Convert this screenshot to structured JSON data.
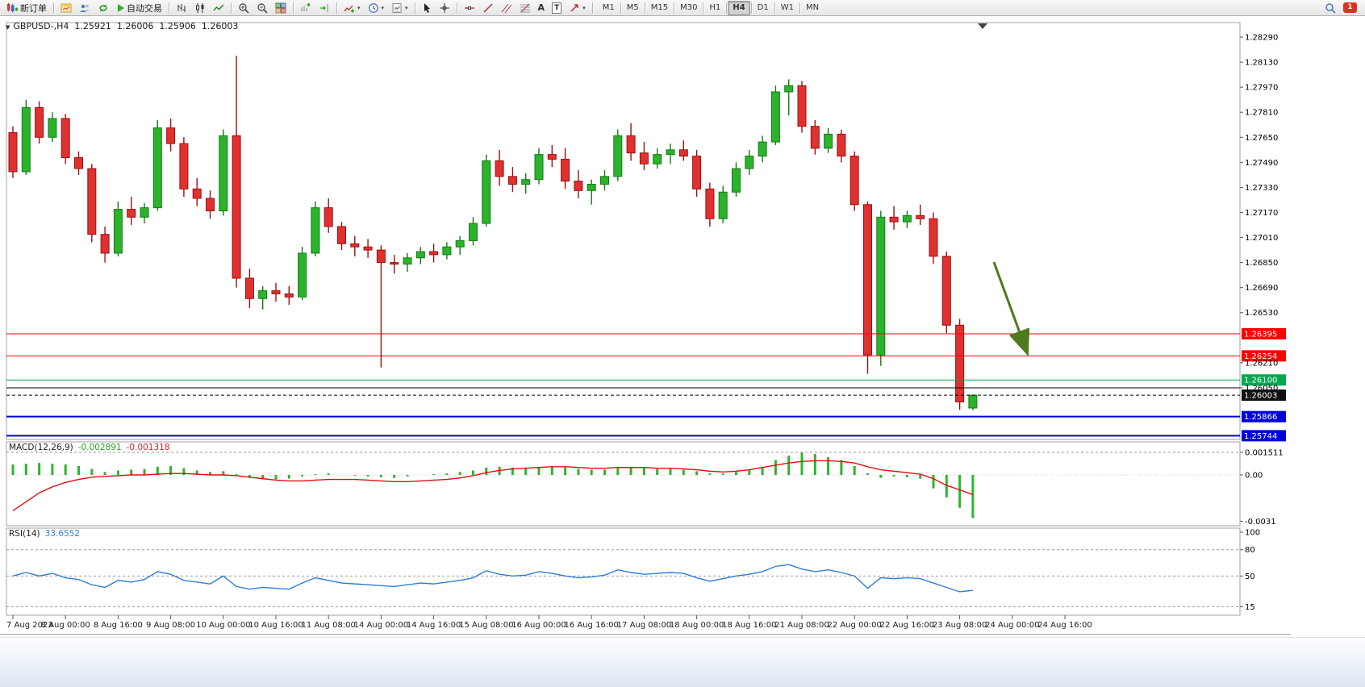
{
  "icon_glyphs": {
    "down_triangle": "▼",
    "caret": "▾",
    "text_tool": "A",
    "label_tool": "T"
  },
  "toolbar": {
    "new_order_label": "新订单",
    "autotrading_label": "自动交易",
    "timeframes": [
      "M1",
      "M5",
      "M15",
      "M30",
      "H1",
      "H4",
      "D1",
      "W1",
      "MN"
    ],
    "active_timeframe": "H4",
    "notification_badge": "1"
  },
  "chart": {
    "title": "GBPUSD-,H4",
    "ohlc": {
      "open": "1.25921",
      "high": "1.26006",
      "low": "1.25906",
      "close": "1.26003"
    },
    "macd_label": {
      "name": "MACD(12,26,9)",
      "main": "-0.002891",
      "signal": "-0.001318"
    },
    "rsi_label": {
      "name": "RSI(14)",
      "value": "33.6552"
    }
  },
  "chart_data": {
    "type": "candlestick",
    "symbol": "GBPUSD-",
    "timeframe": "H4",
    "title": "GBPUSD-,H4 1.25921 1.26006 1.25906 1.26003",
    "price_axis_ticks": [
      "1.28290",
      "1.28130",
      "1.27970",
      "1.27810",
      "1.27650",
      "1.27490",
      "1.27330",
      "1.27170",
      "1.27010",
      "1.26850",
      "1.26690",
      "1.26530",
      "1.26210",
      "1.26050"
    ],
    "time_labels": [
      "7 Aug 2023",
      "8 Aug 00:00",
      "8 Aug 16:00",
      "9 Aug 08:00",
      "10 Aug 00:00",
      "10 Aug 16:00",
      "11 Aug 08:00",
      "14 Aug 00:00",
      "14 Aug 16:00",
      "15 Aug 08:00",
      "16 Aug 00:00",
      "16 Aug 16:00",
      "17 Aug 08:00",
      "18 Aug 00:00",
      "18 Aug 16:00",
      "21 Aug 08:00",
      "22 Aug 00:00",
      "22 Aug 16:00",
      "23 Aug 08:00",
      "24 Aug 00:00",
      "24 Aug 16:00"
    ],
    "candles": [
      [
        1.2768,
        1.2772,
        1.2739,
        1.2743
      ],
      [
        1.2743,
        1.2789,
        1.2741,
        1.2784
      ],
      [
        1.2784,
        1.2788,
        1.2761,
        1.2765
      ],
      [
        1.2765,
        1.2781,
        1.2762,
        1.2777
      ],
      [
        1.2777,
        1.278,
        1.2748,
        1.2752
      ],
      [
        1.2752,
        1.2756,
        1.2741,
        1.2745
      ],
      [
        1.2745,
        1.2748,
        1.2698,
        1.2703
      ],
      [
        1.2703,
        1.2708,
        1.2685,
        1.2691
      ],
      [
        1.2691,
        1.2724,
        1.2689,
        1.2719
      ],
      [
        1.2719,
        1.2727,
        1.2709,
        1.2714
      ],
      [
        1.2714,
        1.2723,
        1.271,
        1.272
      ],
      [
        1.272,
        1.2776,
        1.2718,
        1.2771
      ],
      [
        1.2771,
        1.2777,
        1.2756,
        1.2761
      ],
      [
        1.2761,
        1.2765,
        1.2727,
        1.2732
      ],
      [
        1.2732,
        1.2739,
        1.2721,
        1.2726
      ],
      [
        1.2726,
        1.2731,
        1.2713,
        1.2718
      ],
      [
        1.2718,
        1.277,
        1.2715,
        1.2766
      ],
      [
        1.2766,
        1.2817,
        1.2669,
        1.2675
      ],
      [
        1.2675,
        1.2681,
        1.2656,
        1.2662
      ],
      [
        1.2662,
        1.267,
        1.2655,
        1.2667
      ],
      [
        1.2667,
        1.2672,
        1.266,
        1.2665
      ],
      [
        1.2665,
        1.267,
        1.2658,
        1.2663
      ],
      [
        1.2663,
        1.2695,
        1.2661,
        1.2691
      ],
      [
        1.2691,
        1.2724,
        1.2689,
        1.272
      ],
      [
        1.272,
        1.2726,
        1.2704,
        1.2708
      ],
      [
        1.2708,
        1.2711,
        1.2693,
        1.2697
      ],
      [
        1.2697,
        1.2702,
        1.2689,
        1.2695
      ],
      [
        1.2695,
        1.27,
        1.2688,
        1.2693
      ],
      [
        1.2693,
        1.2696,
        1.2618,
        1.2685
      ],
      [
        1.2685,
        1.269,
        1.2678,
        1.2684
      ],
      [
        1.2684,
        1.2691,
        1.2679,
        1.2688
      ],
      [
        1.2688,
        1.2695,
        1.2684,
        1.2692
      ],
      [
        1.2692,
        1.2697,
        1.2685,
        1.269
      ],
      [
        1.269,
        1.2698,
        1.2687,
        1.2695
      ],
      [
        1.2695,
        1.2702,
        1.269,
        1.2699
      ],
      [
        1.2699,
        1.2714,
        1.2696,
        1.271
      ],
      [
        1.271,
        1.2754,
        1.2708,
        1.275
      ],
      [
        1.275,
        1.2757,
        1.2734,
        1.274
      ],
      [
        1.274,
        1.2746,
        1.273,
        1.2735
      ],
      [
        1.2735,
        1.2742,
        1.2729,
        1.2738
      ],
      [
        1.2738,
        1.2758,
        1.2735,
        1.2754
      ],
      [
        1.2754,
        1.276,
        1.2746,
        1.2751
      ],
      [
        1.2751,
        1.2758,
        1.2732,
        1.2737
      ],
      [
        1.2737,
        1.2744,
        1.2726,
        1.2731
      ],
      [
        1.2731,
        1.2738,
        1.2722,
        1.2735
      ],
      [
        1.2735,
        1.2744,
        1.2731,
        1.274
      ],
      [
        1.274,
        1.277,
        1.2737,
        1.2766
      ],
      [
        1.2766,
        1.2774,
        1.275,
        1.2755
      ],
      [
        1.2755,
        1.2762,
        1.2744,
        1.2748
      ],
      [
        1.2748,
        1.2758,
        1.2745,
        1.2754
      ],
      [
        1.2754,
        1.2761,
        1.2748,
        1.2757
      ],
      [
        1.2757,
        1.2763,
        1.275,
        1.2753
      ],
      [
        1.2753,
        1.2757,
        1.2727,
        1.2732
      ],
      [
        1.2732,
        1.2736,
        1.2708,
        1.2713
      ],
      [
        1.2713,
        1.2734,
        1.271,
        1.273
      ],
      [
        1.273,
        1.2749,
        1.2727,
        1.2745
      ],
      [
        1.2745,
        1.2757,
        1.2741,
        1.2753
      ],
      [
        1.2753,
        1.2766,
        1.2749,
        1.2762
      ],
      [
        1.2762,
        1.2798,
        1.276,
        1.2794
      ],
      [
        1.2794,
        1.2802,
        1.2779,
        1.2798
      ],
      [
        1.2798,
        1.2801,
        1.2768,
        1.2772
      ],
      [
        1.2772,
        1.2776,
        1.2754,
        1.2758
      ],
      [
        1.2758,
        1.2771,
        1.2755,
        1.2767
      ],
      [
        1.2767,
        1.277,
        1.2749,
        1.2753
      ],
      [
        1.2753,
        1.2756,
        1.2718,
        1.2722
      ],
      [
        1.2722,
        1.2724,
        1.2614,
        1.2626
      ],
      [
        1.2626,
        1.2718,
        1.2619,
        1.2714
      ],
      [
        1.2714,
        1.2721,
        1.2706,
        1.2711
      ],
      [
        1.2711,
        1.2718,
        1.2707,
        1.2715
      ],
      [
        1.2715,
        1.2722,
        1.2709,
        1.2713
      ],
      [
        1.2713,
        1.2717,
        1.2684,
        1.2689
      ],
      [
        1.2689,
        1.2692,
        1.264,
        1.2645
      ],
      [
        1.2645,
        1.2649,
        1.2591,
        1.2596
      ],
      [
        1.25921,
        1.26006,
        1.25906,
        1.26003
      ]
    ],
    "hlines": [
      {
        "price": 1.26395,
        "color": "#ff0000",
        "label": "1.26395",
        "width": 1
      },
      {
        "price": 1.26254,
        "color": "#ff0000",
        "label": "1.26254",
        "width": 1
      },
      {
        "price": 1.261,
        "color": "#00a650",
        "label": "1.26100",
        "width": 1
      },
      {
        "price": 1.2605,
        "color": "#000000",
        "label": null,
        "width": 1
      },
      {
        "price": 1.25866,
        "color": "#0000d8",
        "label": "1.25866",
        "width": 2
      },
      {
        "price": 1.25744,
        "color": "#0000d8",
        "label": "1.25744",
        "width": 2
      }
    ],
    "current_price_line": {
      "price": 1.26003,
      "label": "1.26003"
    },
    "arrow_annotation": {
      "from_bar": 74.6,
      "from_price": 1.26853,
      "to_bar": 77.1,
      "to_price": 1.2628
    },
    "macd": {
      "axis_labels": [
        "0.001511",
        "0.00",
        "-0.0031"
      ],
      "levels": [
        0.001511
      ],
      "hist": [
        0.0007,
        0.00075,
        0.0008,
        0.00075,
        0.0007,
        0.0006,
        0.0004,
        0.0002,
        0.0003,
        0.00035,
        0.0004,
        0.00055,
        0.0006,
        0.00045,
        0.0003,
        0.0002,
        0.00025,
        5e-05,
        -0.0002,
        -0.0003,
        -0.0003,
        -0.00025,
        -0.0001,
        5e-05,
        0.0001,
        0.0,
        -5e-05,
        -0.0001,
        -0.00015,
        -0.0002,
        -0.0001,
        0.0,
        5e-05,
        0.0001,
        0.0002,
        0.0003,
        0.0005,
        0.00055,
        0.0005,
        0.00045,
        0.0005,
        0.00055,
        0.0005,
        0.0004,
        0.00035,
        0.00035,
        0.00045,
        0.0005,
        0.00045,
        0.0004,
        0.0004,
        0.00035,
        0.00025,
        0.0001,
        0.0001,
        0.0002,
        0.00035,
        0.0005,
        0.001,
        0.0013,
        0.0015,
        0.0014,
        0.0012,
        0.001,
        0.0006,
        0.0001,
        -0.0002,
        -0.0001,
        -0.00015,
        -0.00025,
        -0.0009,
        -0.0015,
        -0.0022,
        -0.002891
      ],
      "signal": [
        -0.0024,
        -0.0018,
        -0.0012,
        -0.0008,
        -0.0005,
        -0.0003,
        -0.00015,
        -0.0001,
        -5e-05,
        0.0,
        0.0,
        5e-05,
        0.0001,
        0.0001,
        5e-05,
        0.0,
        0.0,
        -5e-05,
        -0.00015,
        -0.00025,
        -0.00035,
        -0.0004,
        -0.0004,
        -0.00035,
        -0.0003,
        -0.0003,
        -0.0003,
        -0.00035,
        -0.0004,
        -0.00045,
        -0.00045,
        -0.0004,
        -0.00035,
        -0.0003,
        -0.0002,
        -5e-05,
        0.00015,
        0.0003,
        0.0004,
        0.00045,
        0.0005,
        0.00055,
        0.00055,
        0.0005,
        0.00045,
        0.00045,
        0.0005,
        0.0005,
        0.0005,
        0.00045,
        0.00045,
        0.0004,
        0.00035,
        0.00025,
        0.0002,
        0.00025,
        0.00035,
        0.0005,
        0.00065,
        0.0008,
        0.0009,
        0.00095,
        0.00095,
        0.0009,
        0.0008,
        0.00055,
        0.00035,
        0.00025,
        0.00015,
        5e-05,
        -0.00025,
        -0.0007,
        -0.001,
        -0.001318
      ]
    },
    "rsi": {
      "axis_labels": [
        "100",
        "80",
        "50",
        "15"
      ],
      "levels": [
        80,
        50,
        15
      ],
      "values": [
        50,
        54,
        50,
        53,
        48,
        46,
        40,
        37,
        45,
        43,
        46,
        55,
        52,
        45,
        43,
        41,
        50,
        38,
        35,
        37,
        36,
        35,
        42,
        48,
        45,
        42,
        41,
        40,
        39,
        38,
        40,
        42,
        41,
        43,
        45,
        48,
        56,
        52,
        50,
        51,
        55,
        53,
        50,
        48,
        49,
        51,
        57,
        54,
        52,
        53,
        54,
        53,
        48,
        44,
        47,
        50,
        52,
        55,
        61,
        63,
        58,
        55,
        57,
        54,
        50,
        36,
        48,
        47,
        48,
        47,
        42,
        37,
        32,
        33.6552
      ]
    },
    "colors": {
      "up": "#2bb32b",
      "down": "#e03030",
      "up_border": "#157a15",
      "down_border": "#9c1010",
      "macd_hist": "#2fb42f",
      "macd_signal": "#e01010",
      "rsi": "#2f7ed8",
      "arrow": "#4c7a1c"
    }
  }
}
